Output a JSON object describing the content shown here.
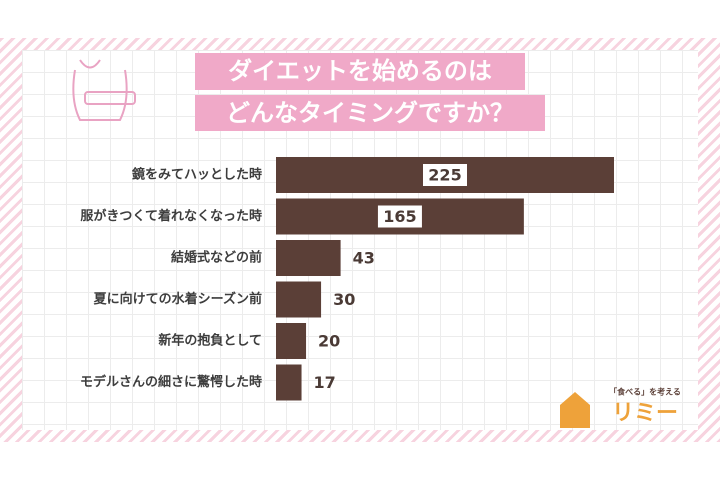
{
  "chart_data": {
    "type": "barh",
    "title_lines": [
      "ダイエットを始めるのは",
      "どんなタイミングですか？"
    ],
    "categories": [
      "鏡をみてハッとした時",
      "服がきつくて着れなくなった時",
      "結婚式などの前",
      "夏に向けての水着シーズン前",
      "新年の抱負として",
      "モデルさんの細さに驚愕した時"
    ],
    "values": [
      225,
      165,
      43,
      30,
      20,
      17
    ],
    "color": "#5b3f37",
    "xlim": [
      0,
      225
    ],
    "logo": {
      "tagline": "「食べる」を考える",
      "name": "リミー"
    }
  }
}
